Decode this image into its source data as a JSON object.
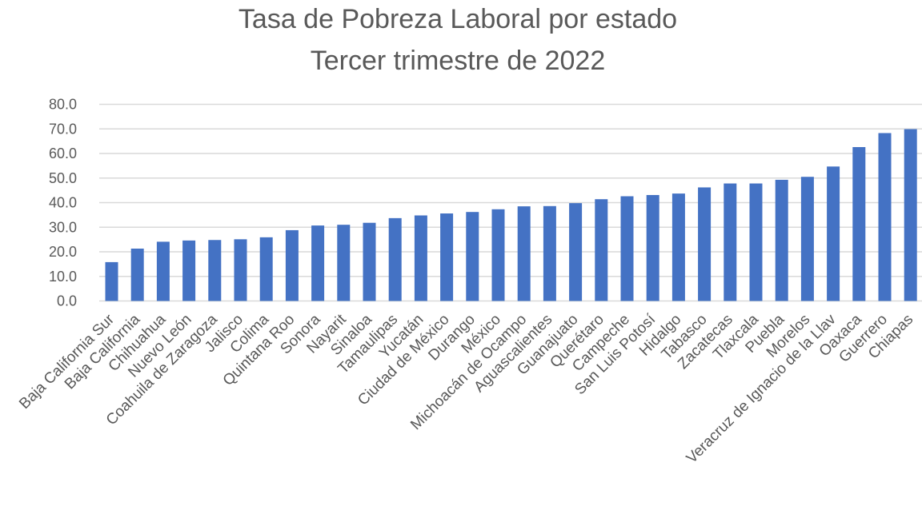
{
  "chart_data": {
    "type": "bar",
    "title": "Tasa de Pobreza Laboral por estado",
    "subtitle": "Tercer trimestre de 2022",
    "xlabel": "",
    "ylabel": "",
    "ylim": [
      0,
      80
    ],
    "yticks": [
      "0.0",
      "10.0",
      "20.0",
      "30.0",
      "40.0",
      "50.0",
      "60.0",
      "70.0",
      "80.0"
    ],
    "grid": true,
    "color": "#4472c4",
    "categories": [
      "Baja California Sur",
      "Baja California",
      "Chihuahua",
      "Nuevo León",
      "Coahuila de Zaragoza",
      "Jalisco",
      "Colima",
      "Quintana Roo",
      "Sonora",
      "Nayarit",
      "Sinaloa",
      "Tamaulipas",
      "Yucatán",
      "Ciudad de México",
      "Durango",
      "México",
      "Michoacán de Ocampo",
      "Aguascalientes",
      "Guanajuato",
      "Querétaro",
      "Campeche",
      "San Luis Potosí",
      "Hidalgo",
      "Tabasco",
      "Zacatecas",
      "Tlaxcala",
      "Puebla",
      "Morelos",
      "Veracruz de Ignacio de la Llav",
      "Oaxaca",
      "Guerrero",
      "Chiapas"
    ],
    "values": [
      15.8,
      21.3,
      24.1,
      24.6,
      24.8,
      25.1,
      25.9,
      28.8,
      30.7,
      31.0,
      31.8,
      33.7,
      34.8,
      35.6,
      36.2,
      37.3,
      38.5,
      38.6,
      39.8,
      41.4,
      42.6,
      43.1,
      43.7,
      46.2,
      47.8,
      47.8,
      49.3,
      50.5,
      54.7,
      62.6,
      68.3,
      69.9
    ]
  }
}
